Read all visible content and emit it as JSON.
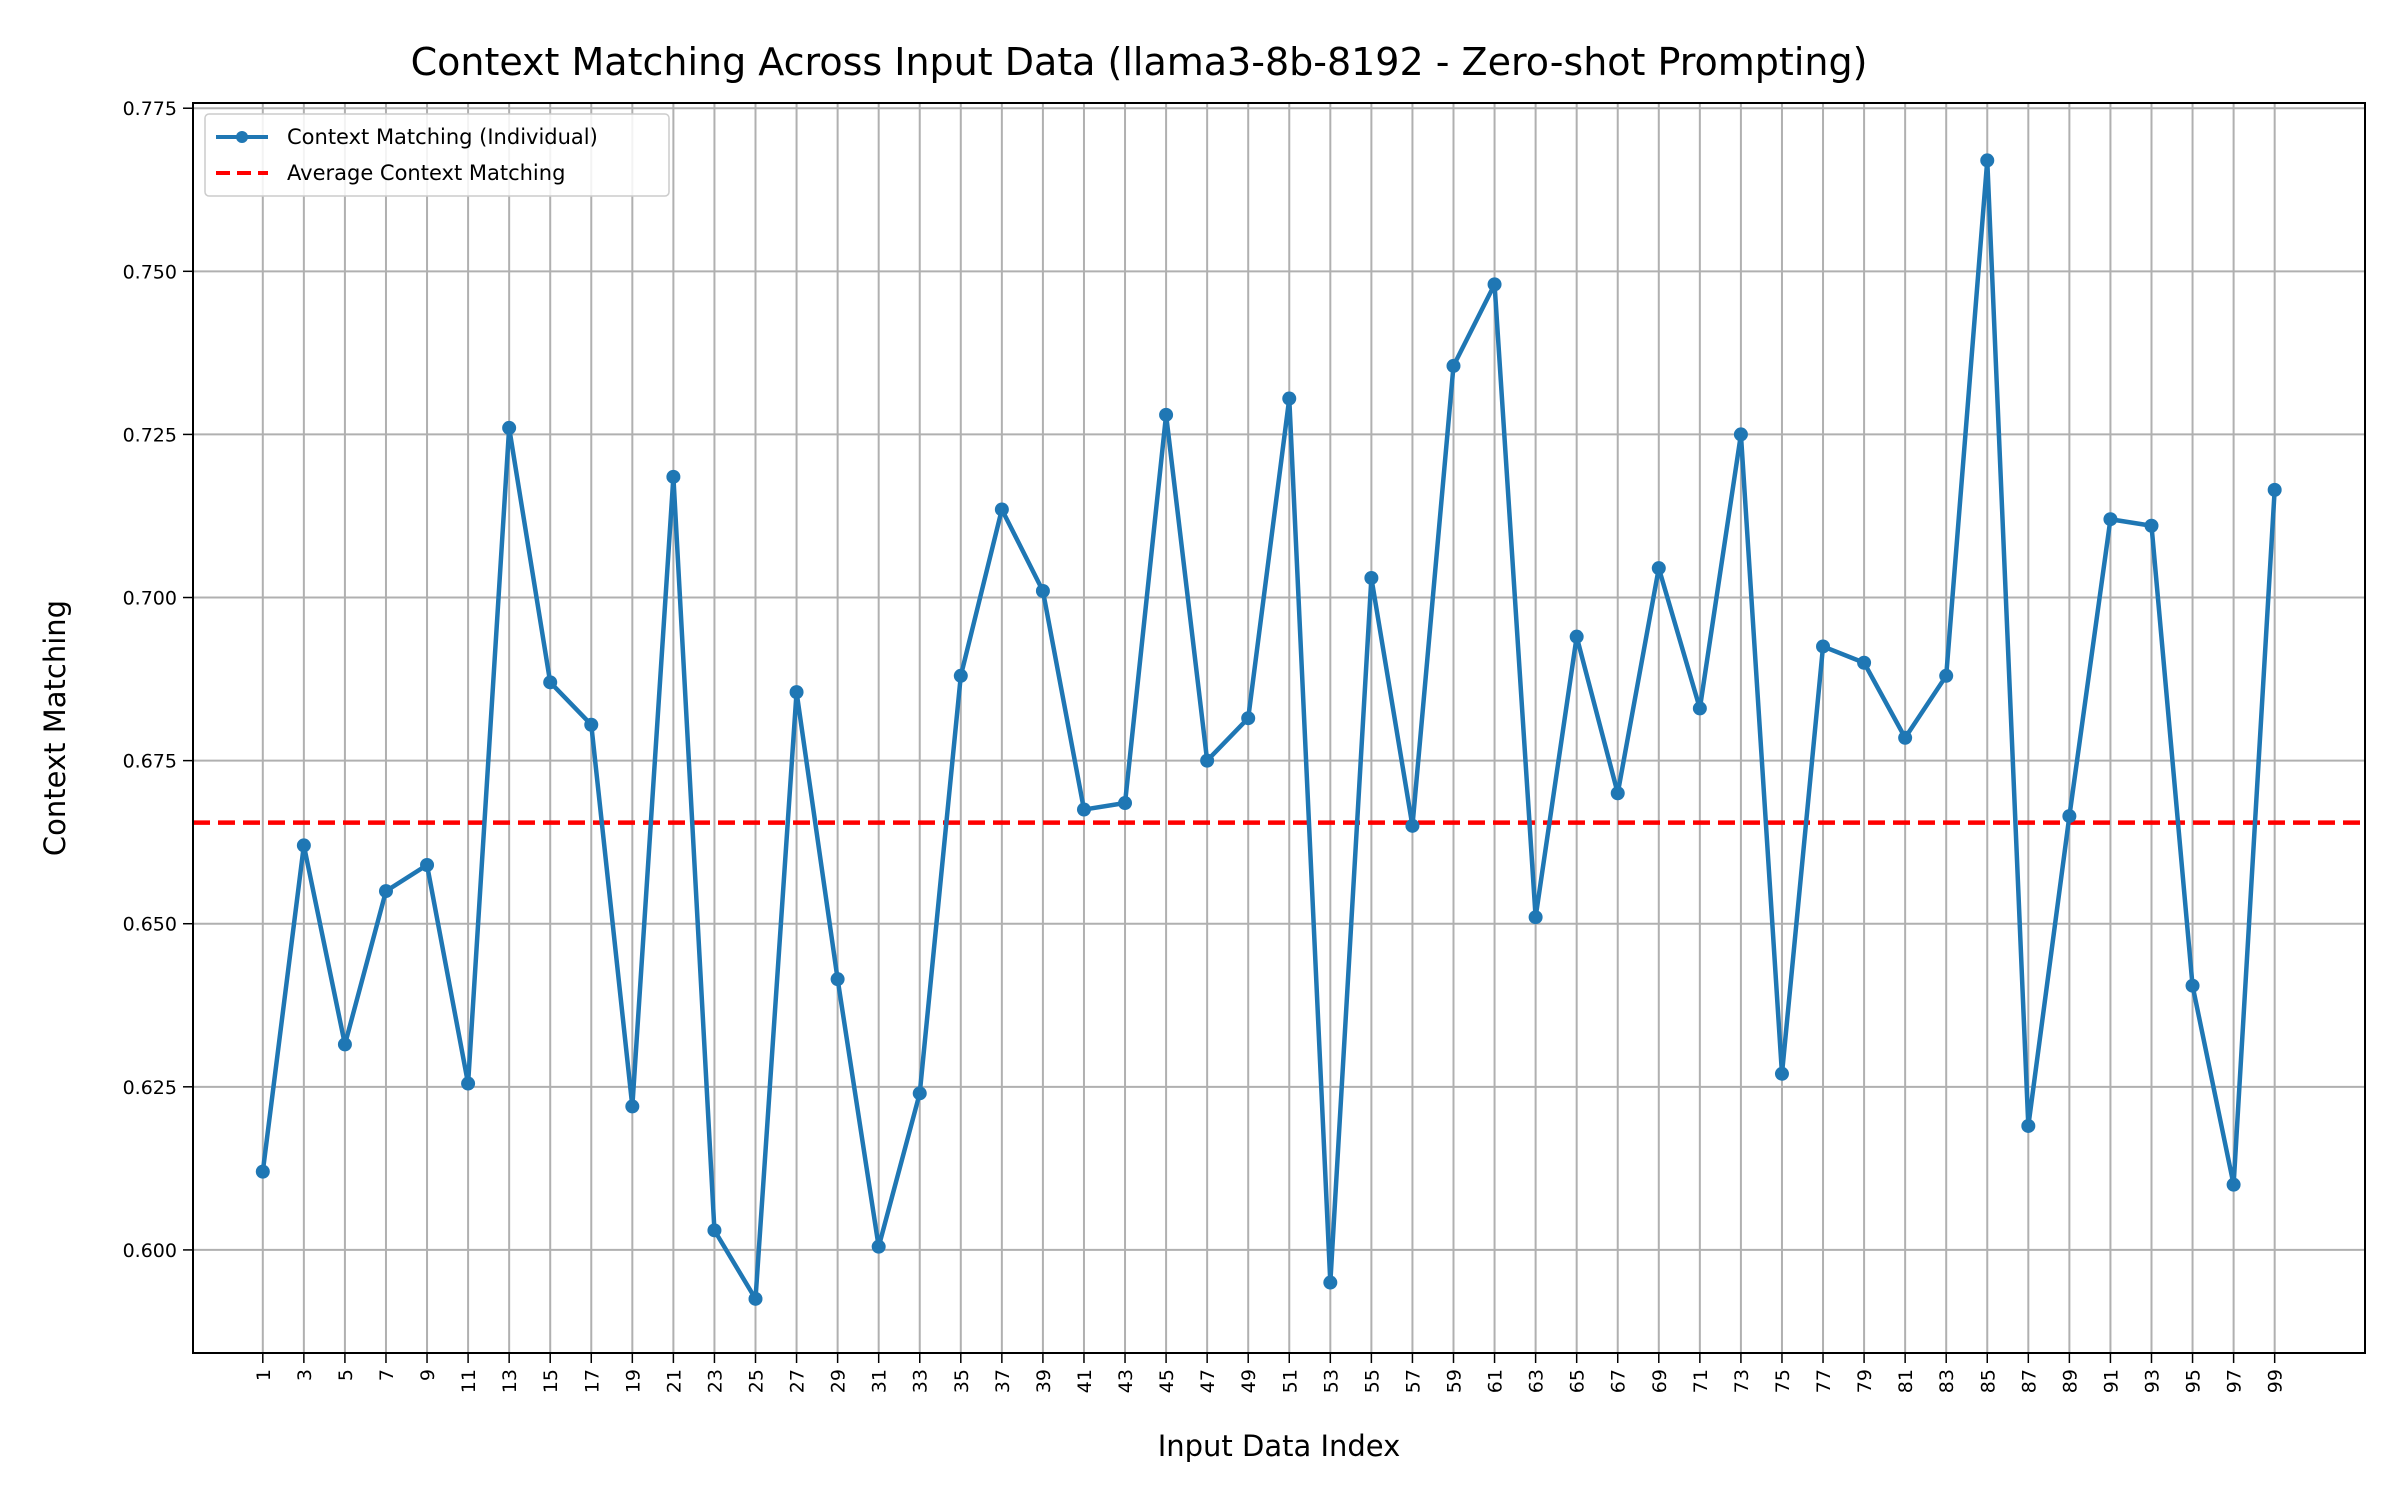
{
  "chart_data": {
    "type": "line",
    "title": "Context Matching Across Input Data (llama3-8b-8192 - Zero-shot Prompting)",
    "xlabel": "Input Data Index",
    "ylabel": "Context Matching",
    "xlim": [
      -2.4,
      103.4
    ],
    "ylim": [
      0.5842,
      0.7758
    ],
    "x_ticks": [
      1,
      3,
      5,
      7,
      9,
      11,
      13,
      15,
      17,
      19,
      21,
      23,
      25,
      27,
      29,
      31,
      33,
      35,
      37,
      39,
      41,
      43,
      45,
      47,
      49,
      51,
      53,
      55,
      57,
      59,
      61,
      63,
      65,
      67,
      69,
      71,
      73,
      75,
      77,
      79,
      81,
      83,
      85,
      87,
      89,
      91,
      93,
      95,
      97,
      99
    ],
    "y_ticks": [
      0.6,
      0.625,
      0.65,
      0.675,
      0.7,
      0.725,
      0.75,
      0.775
    ],
    "y_tick_labels": [
      "0.600",
      "0.625",
      "0.650",
      "0.675",
      "0.700",
      "0.725",
      "0.750",
      "0.775"
    ],
    "grid": true,
    "legend_position": "top-left",
    "series": [
      {
        "name": "Context Matching (Individual)",
        "color": "#1f77b4",
        "style": "solid-with-dot-markers",
        "x": [
          1,
          3,
          5,
          7,
          9,
          11,
          13,
          15,
          17,
          19,
          21,
          23,
          25,
          27,
          29,
          31,
          33,
          35,
          37,
          39,
          41,
          43,
          45,
          47,
          49,
          51,
          53,
          55,
          57,
          59,
          61,
          63,
          65,
          67,
          69,
          71,
          73,
          75,
          77,
          79,
          81,
          83,
          85,
          87,
          89,
          91,
          93,
          95,
          97,
          99
        ],
        "values": [
          0.612,
          0.662,
          0.6315,
          0.655,
          0.659,
          0.6255,
          0.726,
          0.687,
          0.6805,
          0.622,
          0.7185,
          0.603,
          0.5925,
          0.6855,
          0.6415,
          0.6005,
          0.624,
          0.688,
          0.7135,
          0.701,
          0.6675,
          0.6685,
          0.728,
          0.675,
          0.6815,
          0.7305,
          0.595,
          0.703,
          0.665,
          0.7355,
          0.748,
          0.651,
          0.694,
          0.67,
          0.7045,
          0.683,
          0.725,
          0.627,
          0.6925,
          0.69,
          0.6785,
          0.688,
          0.767,
          0.619,
          0.6665,
          0.712,
          0.711,
          0.6405,
          0.61,
          0.7165
        ]
      },
      {
        "name": "Average Context Matching",
        "color": "#ff0000",
        "style": "dashed",
        "value": 0.6655
      }
    ]
  }
}
